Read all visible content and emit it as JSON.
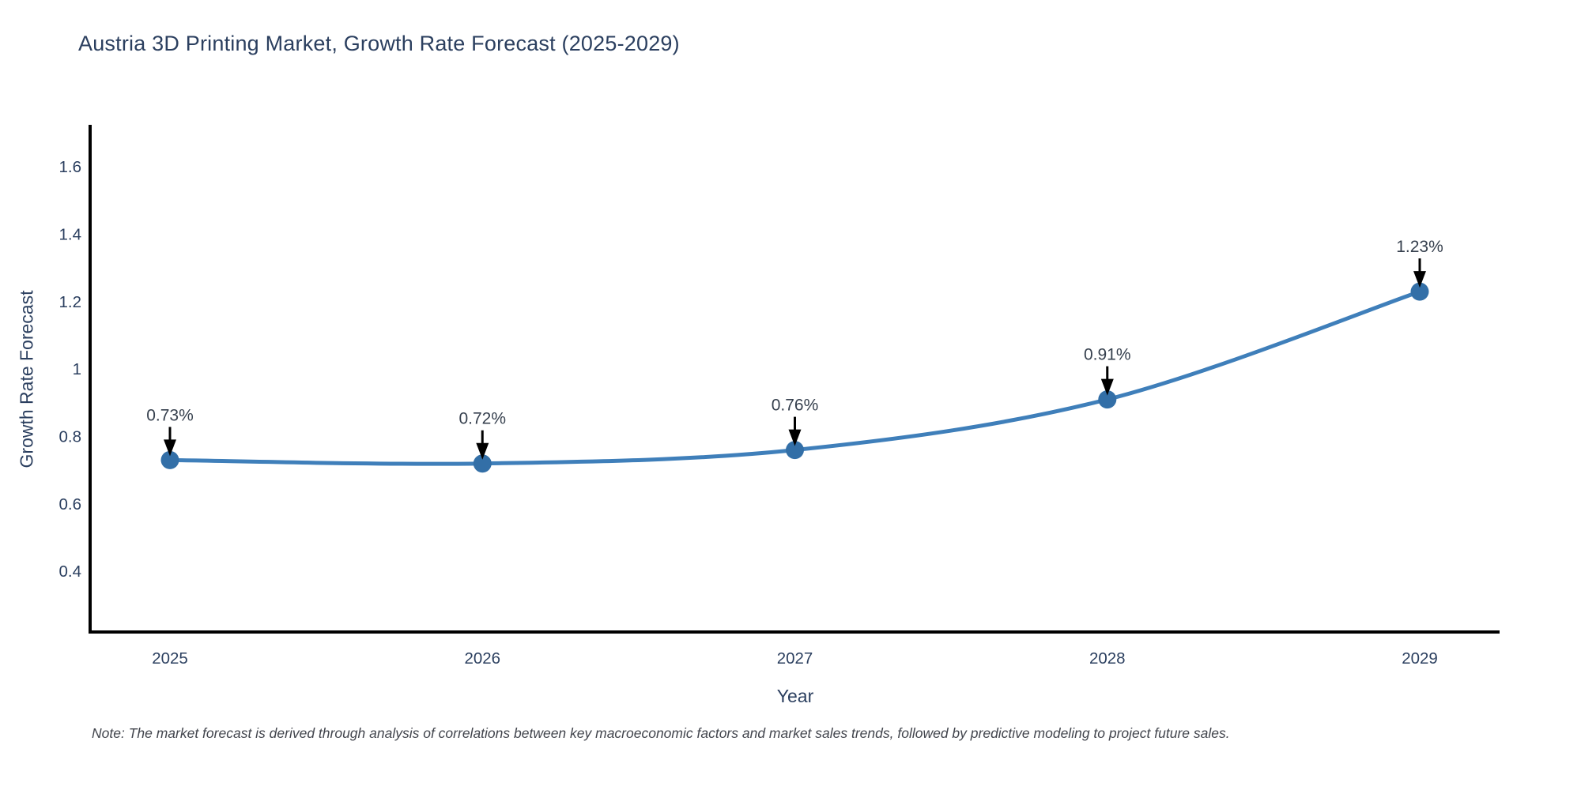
{
  "note": "Note: The market forecast is derived through analysis of correlations between key macroeconomic factors and market sales trends, followed by predictive modeling to project future sales.",
  "chart_data": {
    "type": "line",
    "title": "Austria 3D Printing Market, Growth Rate Forecast (2025-2029)",
    "xlabel": "Year",
    "ylabel": "Growth Rate Forecast",
    "categories": [
      "2025",
      "2026",
      "2027",
      "2028",
      "2029"
    ],
    "x": [
      2025,
      2026,
      2027,
      2028,
      2029
    ],
    "values": [
      0.73,
      0.72,
      0.76,
      0.91,
      1.23
    ],
    "point_labels": [
      "0.73%",
      "0.72%",
      "0.76%",
      "0.91%",
      "1.23%"
    ],
    "ytick_labels": [
      "0.4",
      "0.6",
      "0.8",
      "1",
      "1.2",
      "1.4",
      "1.6"
    ],
    "ytick_values": [
      0.4,
      0.6,
      0.8,
      1.0,
      1.2,
      1.4,
      1.6
    ],
    "ylim": [
      0.22,
      1.72
    ],
    "line_shape": "spline",
    "grid": false,
    "legend": false,
    "colors": {
      "line": "#3f7fba",
      "marker": "#336fa7",
      "annotation_text": "#36404e",
      "arrow": "#000000",
      "axis": "#000000",
      "tick_text": "#2b3f5f",
      "title_text": "#2b3f5f",
      "note_text": "#42454d"
    }
  }
}
